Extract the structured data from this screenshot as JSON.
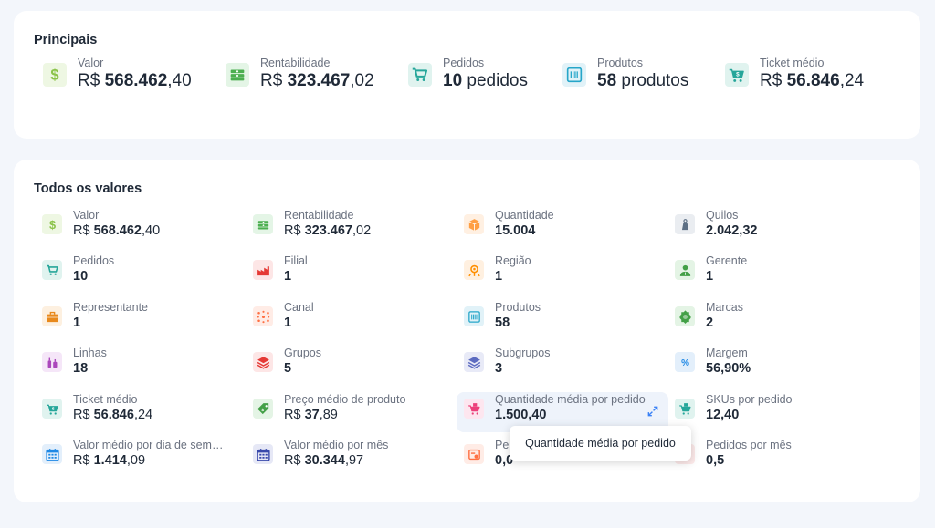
{
  "principais": {
    "title": "Principais",
    "items": [
      {
        "label": "Valor",
        "prefix": "R$ ",
        "bold": "568.462",
        "suffix": ",40",
        "icon": "dollar-icon",
        "color": "#8bc34a",
        "bg": "#eef7e3"
      },
      {
        "label": "Rentabilidade",
        "prefix": "R$ ",
        "bold": "323.467",
        "suffix": ",02",
        "icon": "money-stack-icon",
        "color": "#4caf50",
        "bg": "#e4f5e6"
      },
      {
        "label": "Pedidos",
        "prefix": "",
        "bold": "10",
        "suffix": " pedidos",
        "icon": "cart-icon",
        "color": "#26a69a",
        "bg": "#e0f3ef"
      },
      {
        "label": "Produtos",
        "prefix": "",
        "bold": "58",
        "suffix": " produtos",
        "icon": "barcode-icon",
        "color": "#26a6c9",
        "bg": "#e1f2f8"
      },
      {
        "label": "Ticket médio",
        "prefix": "R$ ",
        "bold": "56.846",
        "suffix": ",24",
        "icon": "cart-dollar-icon",
        "color": "#26a69a",
        "bg": "#e0f3ef"
      }
    ]
  },
  "todos": {
    "title": "Todos os valores",
    "items": [
      {
        "label": "Valor",
        "prefix": "R$ ",
        "bold": "568.462",
        "suffix": ",40",
        "icon": "dollar-icon",
        "color": "#8bc34a",
        "bg": "#eef7e3"
      },
      {
        "label": "Rentabilidade",
        "prefix": "R$ ",
        "bold": "323.467",
        "suffix": ",02",
        "icon": "money-stack-icon",
        "color": "#4caf50",
        "bg": "#e4f5e6"
      },
      {
        "label": "Quantidade",
        "prefix": "",
        "bold": "15.004",
        "suffix": "",
        "icon": "box-icon",
        "color": "#ff9f43",
        "bg": "#fff0e2"
      },
      {
        "label": "Quilos",
        "prefix": "",
        "bold": "2.042,32",
        "suffix": "",
        "icon": "weight-icon",
        "color": "#5c6f84",
        "bg": "#eaedf1"
      },
      {
        "label": "Pedidos",
        "prefix": "",
        "bold": "10",
        "suffix": "",
        "icon": "cart-icon",
        "color": "#26a69a",
        "bg": "#e0f3ef"
      },
      {
        "label": "Filial",
        "prefix": "",
        "bold": "1",
        "suffix": "",
        "icon": "factory-icon",
        "color": "#e53935",
        "bg": "#fde6e6"
      },
      {
        "label": "Região",
        "prefix": "",
        "bold": "1",
        "suffix": "",
        "icon": "map-pin-icon",
        "color": "#ff8f00",
        "bg": "#fff0e0"
      },
      {
        "label": "Gerente",
        "prefix": "",
        "bold": "1",
        "suffix": "",
        "icon": "manager-icon",
        "color": "#43a047",
        "bg": "#e4f4e5"
      },
      {
        "label": "Representante",
        "prefix": "",
        "bold": "1",
        "suffix": "",
        "icon": "briefcase-icon",
        "color": "#e8891c",
        "bg": "#fdf0e0"
      },
      {
        "label": "Canal",
        "prefix": "",
        "bold": "1",
        "suffix": "",
        "icon": "network-icon",
        "color": "#ff7043",
        "bg": "#ffece6"
      },
      {
        "label": "Produtos",
        "prefix": "",
        "bold": "58",
        "suffix": "",
        "icon": "barcode-icon",
        "color": "#26a6c9",
        "bg": "#e1f2f8"
      },
      {
        "label": "Marcas",
        "prefix": "",
        "bold": "2",
        "suffix": "",
        "icon": "badge-icon",
        "color": "#43a047",
        "bg": "#e4f4e5"
      },
      {
        "label": "Linhas",
        "prefix": "",
        "bold": "18",
        "suffix": "",
        "icon": "bottles-icon",
        "color": "#ab47bc",
        "bg": "#f5e6f8"
      },
      {
        "label": "Grupos",
        "prefix": "",
        "bold": "5",
        "suffix": "",
        "icon": "layers-icon",
        "color": "#e53935",
        "bg": "#fde6e6"
      },
      {
        "label": "Subgrupos",
        "prefix": "",
        "bold": "3",
        "suffix": "",
        "icon": "layers-icon",
        "color": "#5c6bc0",
        "bg": "#e8eaf7"
      },
      {
        "label": "Margem",
        "prefix": "",
        "bold": "56,90%",
        "suffix": "",
        "icon": "percent-icon",
        "color": "#1e88e5",
        "bg": "#e3effb"
      },
      {
        "label": "Ticket médio",
        "prefix": "R$ ",
        "bold": "56.846",
        "suffix": ",24",
        "icon": "cart-dollar-icon",
        "color": "#26a69a",
        "bg": "#e0f3ef"
      },
      {
        "label": "Preço médio de produto",
        "prefix": "R$ ",
        "bold": "37",
        "suffix": ",89",
        "icon": "price-tag-icon",
        "color": "#43a047",
        "bg": "#e4f4e5"
      },
      {
        "label": "Quantidade média por pedido",
        "prefix": "",
        "bold": "1.500,40",
        "suffix": "",
        "icon": "cart-box-icon",
        "color": "#ec407a",
        "bg": "#fde6ef"
      },
      {
        "label": "SKUs por pedido",
        "prefix": "",
        "bold": "12,40",
        "suffix": "",
        "icon": "cart-box-icon",
        "color": "#26a69a",
        "bg": "#e0f3ef"
      },
      {
        "label": "Valor médio por dia de semana",
        "prefix": "R$ ",
        "bold": "1.414",
        "suffix": ",09",
        "icon": "calendar-icon",
        "color": "#1e88e5",
        "bg": "#e3effb"
      },
      {
        "label": "Valor médio por mês",
        "prefix": "R$ ",
        "bold": "30.344",
        "suffix": ",97",
        "icon": "calendar-icon",
        "color": "#3949ab",
        "bg": "#e6e8f6"
      },
      {
        "label": "Pe",
        "prefix": "",
        "bold": "0,0",
        "suffix": "",
        "icon": "invoice-icon",
        "color": "#ff7043",
        "bg": "#ffece6"
      },
      {
        "label": "Pedidos por mês",
        "prefix": "",
        "bold": "0,5",
        "suffix": "",
        "icon": "cart-icon",
        "color": "#e57373",
        "bg": "#fdeaea"
      }
    ]
  },
  "tooltip": {
    "text": "Quantidade média por pedido"
  }
}
